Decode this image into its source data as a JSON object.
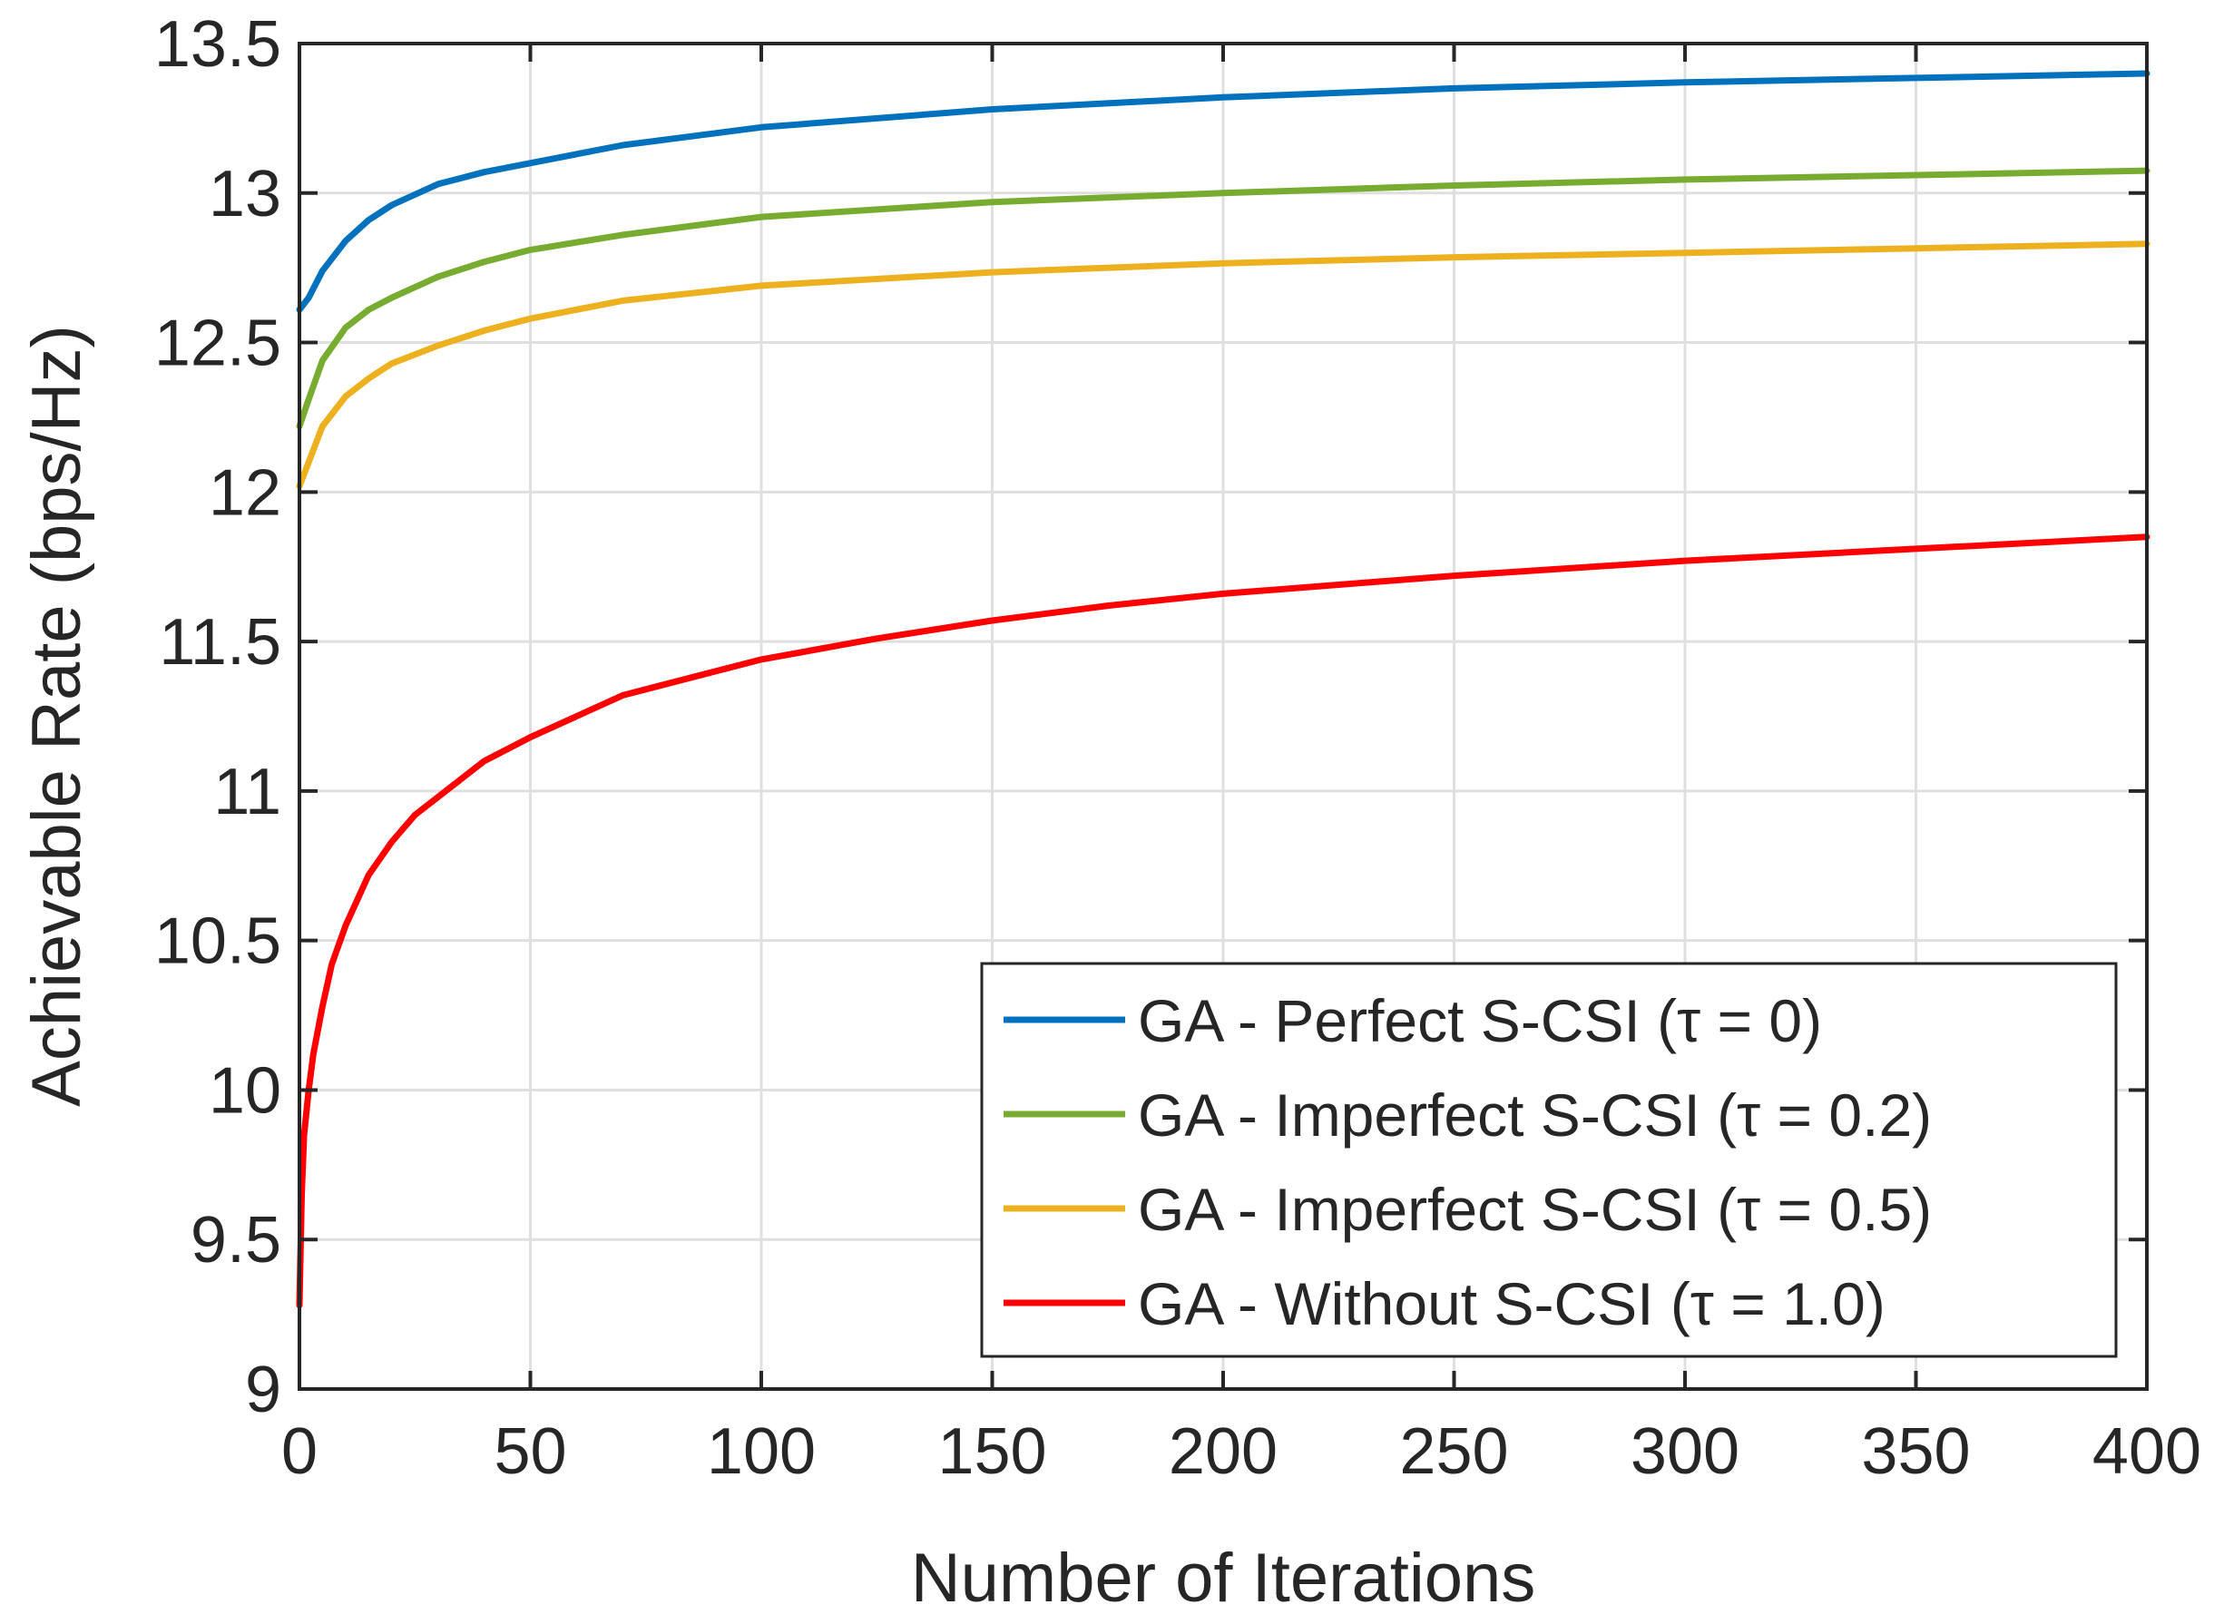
{
  "chart_data": {
    "type": "line",
    "title": "",
    "xlabel": "Number of Iterations",
    "ylabel": "Achievable Rate (bps/Hz)",
    "xlim": [
      0,
      400
    ],
    "ylim": [
      9,
      13.5
    ],
    "xticks": [
      0,
      50,
      100,
      150,
      200,
      250,
      300,
      350,
      400
    ],
    "yticks": [
      9,
      9.5,
      10,
      10.5,
      11,
      11.5,
      12,
      12.5,
      13,
      13.5
    ],
    "xtick_labels": [
      "0",
      "50",
      "100",
      "150",
      "200",
      "250",
      "300",
      "350",
      "400"
    ],
    "ytick_labels": [
      "9",
      "9.5",
      "10",
      "10.5",
      "11",
      "11.5",
      "12",
      "12.5",
      "13",
      "13.5"
    ],
    "grid": true,
    "legend_position": "bottom-right",
    "series": [
      {
        "name": "GA - Perfect S-CSI (τ = 0)",
        "color": "#0072BD",
        "x": [
          0,
          2,
          5,
          10,
          15,
          20,
          30,
          40,
          50,
          70,
          100,
          150,
          200,
          250,
          300,
          350,
          400
        ],
        "y": [
          12.61,
          12.65,
          12.74,
          12.84,
          12.91,
          12.96,
          13.03,
          13.07,
          13.1,
          13.16,
          13.22,
          13.28,
          13.32,
          13.35,
          13.37,
          13.385,
          13.4
        ]
      },
      {
        "name": "GA - Imperfect S-CSI (τ = 0.2)",
        "color": "#77AC30",
        "x": [
          0,
          2,
          5,
          10,
          15,
          20,
          30,
          40,
          50,
          70,
          100,
          150,
          200,
          250,
          300,
          350,
          400
        ],
        "y": [
          12.22,
          12.31,
          12.44,
          12.55,
          12.61,
          12.65,
          12.72,
          12.77,
          12.81,
          12.86,
          12.92,
          12.97,
          13.0,
          13.025,
          13.045,
          13.06,
          13.075
        ]
      },
      {
        "name": "GA - Imperfect S-CSI (τ = 0.5)",
        "color": "#EDB120",
        "x": [
          0,
          2,
          5,
          10,
          15,
          20,
          30,
          40,
          50,
          70,
          100,
          150,
          200,
          250,
          300,
          350,
          400
        ],
        "y": [
          12.02,
          12.1,
          12.22,
          12.32,
          12.38,
          12.43,
          12.49,
          12.54,
          12.58,
          12.64,
          12.69,
          12.735,
          12.765,
          12.785,
          12.8,
          12.815,
          12.83
        ]
      },
      {
        "name": "GA - Without S-CSI (τ = 1.0)",
        "color": "#FF0000",
        "x": [
          0,
          0.5,
          1,
          2,
          3,
          5,
          7,
          10,
          15,
          20,
          25,
          30,
          40,
          50,
          60,
          70,
          80,
          100,
          125,
          150,
          175,
          200,
          250,
          300,
          350,
          400
        ],
        "y": [
          9.28,
          9.65,
          9.85,
          10.0,
          10.12,
          10.28,
          10.42,
          10.55,
          10.72,
          10.83,
          10.92,
          10.98,
          11.1,
          11.18,
          11.25,
          11.32,
          11.36,
          11.44,
          11.51,
          11.57,
          11.62,
          11.66,
          11.72,
          11.77,
          11.81,
          11.85
        ]
      }
    ]
  }
}
